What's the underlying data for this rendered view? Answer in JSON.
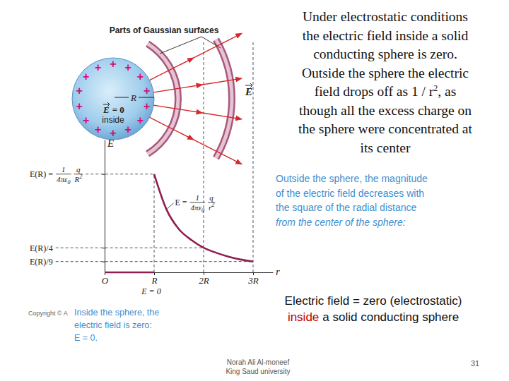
{
  "slide": {
    "text_block": [
      {
        "text": "Under electrostatic conditions"
      },
      {
        "text": "the electric field inside a solid"
      },
      {
        "text": "conducting sphere is zero."
      },
      {
        "text": "Outside the sphere the electric"
      },
      {
        "text": "field drops off as 1 / r",
        "sup": "2",
        "after": ", as"
      },
      {
        "text": "though all the excess charge on"
      },
      {
        "text": "the sphere were concentrated at"
      },
      {
        "text": "its center"
      }
    ],
    "caption_outside": [
      "Outside the sphere, the magnitude",
      "of the electric field decreases with",
      "the square of the radial distance",
      "from the center of the sphere:"
    ],
    "caption_inside": [
      "Inside the sphere, the",
      "electric field is zero:",
      "E = 0."
    ],
    "copyright": "Copyright © A",
    "summary": {
      "line1": "Electric field = zero (electrostatic)",
      "line2_highlight": "inside",
      "line2_rest": "a solid conducting sphere"
    },
    "footer": {
      "author": "Norah Ali Al-moneef",
      "institution": "King Saud university",
      "page": 31
    }
  },
  "diagram": {
    "title": "Parts of Gaussian surfaces",
    "charge": "+",
    "inside_field": {
      "symbol": "E",
      "rest": "= 0"
    },
    "inside_label": "inside",
    "radius_label": "R",
    "field_label": "E"
  },
  "chart_data": {
    "type": "line",
    "x_label": "r",
    "y_label": "E",
    "xlim": [
      0,
      3.4
    ],
    "ylim": [
      0,
      1.35
    ],
    "xticks": [
      {
        "value": 0,
        "label": "O"
      },
      {
        "value": 1,
        "label": "R"
      },
      {
        "value": 2,
        "label": "2R"
      },
      {
        "value": 3,
        "label": "3R"
      }
    ],
    "yticks": [
      {
        "value": 1,
        "label": "E(R)"
      },
      {
        "value": 0.25,
        "label": "E(R)/4"
      },
      {
        "value": 0.11,
        "label": "E(R)/9"
      }
    ],
    "grid": false,
    "series": [
      {
        "x": [
          0,
          1
        ],
        "values": [
          0,
          0
        ],
        "color": "#8e1f4f",
        "line_style": "solid"
      },
      {
        "x": [
          1,
          1.25,
          1.5,
          1.75,
          2,
          2.25,
          2.5,
          2.75,
          3
        ],
        "values": [
          1,
          0.64,
          0.44,
          0.33,
          0.25,
          0.2,
          0.16,
          0.13,
          0.11
        ],
        "color": "#8e1f4f",
        "line_style": "solid"
      }
    ],
    "annotations": {
      "formula_ER": {
        "lhs": "=",
        "num1": "1",
        "den1": "4πε",
        "den1_sub": "0",
        "num2": "q",
        "den2": "R",
        "den2_sup": "2"
      },
      "formula_E": {
        "lhs": "E =",
        "num1": "1",
        "den1": "4πε",
        "den1_sub": "0",
        "num2": "q",
        "den2": "r",
        "den2_sup": "2"
      },
      "zero_label": "E = 0"
    }
  }
}
